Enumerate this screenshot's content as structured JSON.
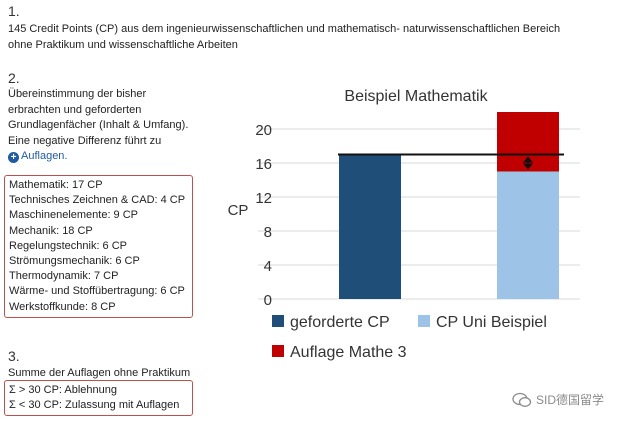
{
  "section1": {
    "number": "1.",
    "text_line1": "145 Credit Points (CP) aus dem ingenieurwissenschaftlichen und mathematisch- naturwissenschaftlichen Bereich",
    "text_line2": "ohne Praktikum und wissenschaftliche Arbeiten"
  },
  "section2": {
    "number": "2.",
    "lines": [
      "Übereinstimmung der bisher",
      "erbrachten und geforderten",
      "Grundlagenfächer (Inhalt & Umfang).",
      "Eine negative Differenz führt zu"
    ],
    "link_label": "Auflagen.",
    "subjects": [
      "Mathematik: 17 CP",
      "Technisches Zeichnen & CAD: 4 CP",
      "Maschinenelemente: 9 CP",
      "Mechanik: 18 CP",
      "Regelungstechnik: 6 CP",
      "Strömungsmechanik: 6 CP",
      "Thermodynamik: 7 CP",
      "Wärme- und Stoffübertragung: 6 CP",
      "Werkstoffkunde: 8 CP"
    ]
  },
  "section3": {
    "number": "3.",
    "heading": "Summe der Auflagen ohne Praktikum",
    "rules": [
      "Σ > 30 CP: Ablehnung",
      "Σ < 30 CP: Zulassung mit Auflagen"
    ]
  },
  "watermark": "SID德国留学",
  "chart_data": {
    "type": "bar",
    "title": "Beispiel Mathematik",
    "ylabel": "CP",
    "ylim": [
      0,
      20
    ],
    "yticks": [
      0,
      4,
      8,
      12,
      16,
      20
    ],
    "categories": [
      "",
      ""
    ],
    "series": [
      {
        "name": "geforderte CP",
        "color": "#1f4e79",
        "values": [
          17,
          0
        ]
      },
      {
        "name": "CP Uni Beispiel",
        "color": "#9dc3e6",
        "values": [
          0,
          15
        ]
      },
      {
        "name": "Auflage Mathe 3",
        "color": "#c00000",
        "values": [
          0,
          7
        ]
      }
    ],
    "reference_line": 17,
    "stacked": true,
    "legend_position": "bottom"
  }
}
